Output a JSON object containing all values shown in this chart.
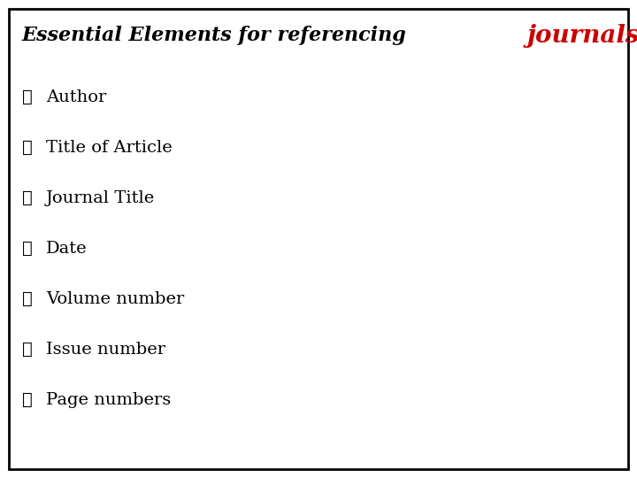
{
  "title_black": "Essential Elements for referencing ",
  "title_red": "journals",
  "items": [
    "Author",
    "Title of Article",
    "Journal Title",
    "Date",
    "Volume number",
    "Issue number",
    "Page numbers"
  ],
  "background_color": "#ffffff",
  "border_color": "#000000",
  "text_color": "#000000",
  "title_red_color": "#cc0000",
  "title_fontsize": 16,
  "item_fontsize": 14,
  "bullet_fontsize": 14,
  "bullet_char": "➢"
}
